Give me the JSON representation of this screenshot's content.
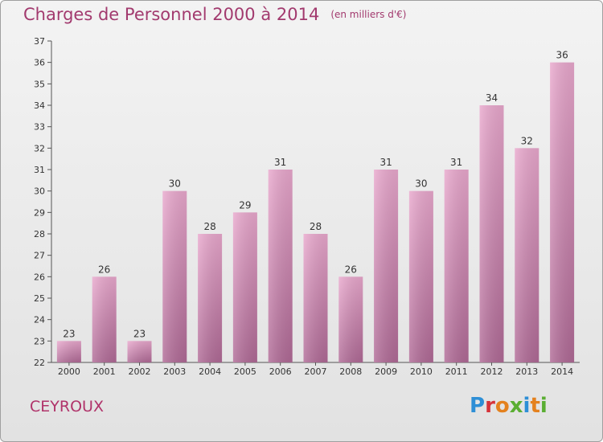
{
  "title": "Charges de Personnel 2000 à 2014",
  "subtitle": "(en milliers d'€)",
  "place_label": "CEYROUX",
  "brand": "Proxiti",
  "colors": {
    "bar_top": "#e9a8cd",
    "bar_bottom": "#b06a96",
    "title": "#a23a6e",
    "axis": "#555555"
  },
  "chart_data": {
    "type": "bar",
    "title": "Charges de Personnel 2000 à 2014",
    "subtitle": "(en milliers d'€)",
    "categories": [
      "2000",
      "2001",
      "2002",
      "2003",
      "2004",
      "2005",
      "2006",
      "2007",
      "2008",
      "2009",
      "2010",
      "2011",
      "2012",
      "2013",
      "2014"
    ],
    "values": [
      23,
      26,
      23,
      30,
      28,
      29,
      31,
      28,
      26,
      31,
      30,
      31,
      34,
      32,
      36
    ],
    "ylim": [
      22,
      37
    ],
    "yticks": [
      22,
      23,
      24,
      25,
      26,
      27,
      28,
      29,
      30,
      31,
      32,
      33,
      34,
      35,
      36,
      37
    ],
    "grid": false,
    "legend": "none"
  }
}
